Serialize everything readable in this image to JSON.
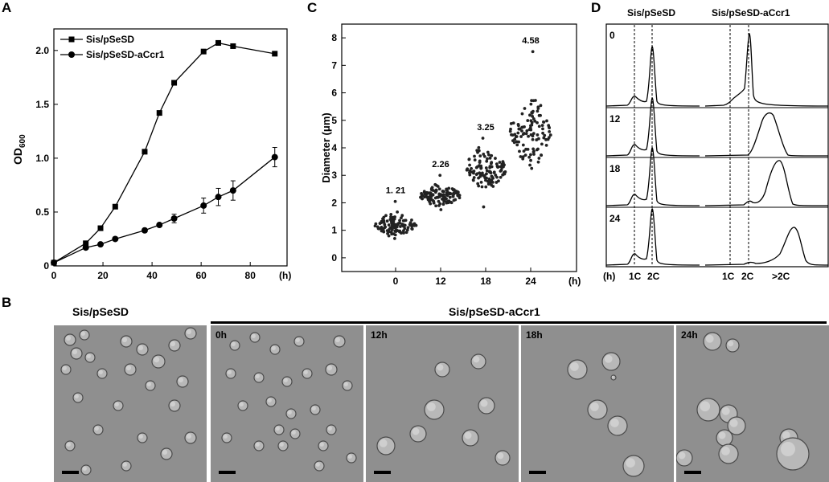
{
  "panels": {
    "A": {
      "letter": "A"
    },
    "B": {
      "letter": "B",
      "left_title": "Sis/pSeSD",
      "right_title": "Sis/pSeSD-aCcr1",
      "micrographs": [
        "",
        "0h",
        "12h",
        "18h",
        "24h"
      ]
    },
    "C": {
      "letter": "C"
    },
    "D": {
      "letter": "D",
      "left_title": "Sis/pSeSD",
      "right_title": "Sis/pSeSD-aCcr1",
      "row_labels": [
        "0",
        "12",
        "18",
        "24"
      ],
      "bottom_unit": "(h)",
      "left_ticks": [
        "1C",
        "2C"
      ],
      "right_ticks": [
        "1C",
        "2C",
        ">2C"
      ]
    }
  },
  "chart_data": [
    {
      "panel": "A",
      "type": "line",
      "ylabel": "OD600",
      "ylabel_main": "OD",
      "ylabel_sub": "600",
      "xunit": "(h)",
      "xlim": [
        0,
        95
      ],
      "ylim": [
        0,
        2.2
      ],
      "xticks": [
        "0",
        "20",
        "40",
        "60",
        "80"
      ],
      "xtick_values": [
        0,
        20,
        40,
        60,
        80
      ],
      "yticks": [
        "0",
        "0.5",
        "1.0",
        "1.5",
        "2.0"
      ],
      "ytick_values": [
        0,
        0.5,
        1.0,
        1.5,
        2.0
      ],
      "legend": [
        "Sis/pSeSD",
        "Sis/pSeSD-aCcr1"
      ],
      "series": [
        {
          "name": "Sis/pSeSD",
          "marker": "square",
          "x": [
            0,
            13,
            19,
            25,
            37,
            43,
            49,
            61,
            67,
            73,
            90
          ],
          "y": [
            0.03,
            0.21,
            0.35,
            0.55,
            1.06,
            1.42,
            1.7,
            1.99,
            2.07,
            2.04,
            1.97
          ]
        },
        {
          "name": "Sis/pSeSD-aCcr1",
          "marker": "circle",
          "x": [
            0,
            13,
            19,
            25,
            37,
            43,
            49,
            61,
            67,
            73,
            90
          ],
          "y": [
            0.03,
            0.17,
            0.2,
            0.25,
            0.33,
            0.38,
            0.44,
            0.56,
            0.64,
            0.7,
            1.01
          ],
          "error": [
            0,
            0,
            0,
            0,
            0,
            0,
            0.04,
            0.07,
            0.08,
            0.09,
            0.09
          ]
        }
      ]
    },
    {
      "panel": "C",
      "type": "scatter",
      "ylabel": "Diameter (μm)",
      "xunit": "(h)",
      "categories": [
        "0",
        "12",
        "18",
        "24"
      ],
      "ylim": [
        -0.5,
        8.5
      ],
      "yticks": [
        "0",
        "1",
        "2",
        "3",
        "4",
        "5",
        "6",
        "7",
        "8"
      ],
      "ytick_values": [
        0,
        1,
        2,
        3,
        4,
        5,
        6,
        7,
        8
      ],
      "mean_labels": [
        "1. 21",
        "2.26",
        "3.25",
        "4.58"
      ],
      "groups": [
        {
          "category": "0",
          "mean": 1.21,
          "min": 0.7,
          "max": 2.05
        },
        {
          "category": "12",
          "mean": 2.26,
          "min": 1.75,
          "max": 3.0
        },
        {
          "category": "18",
          "mean": 3.25,
          "min": 1.85,
          "max": 4.35
        },
        {
          "category": "24",
          "mean": 4.58,
          "min": 3.25,
          "max": 7.5
        }
      ]
    }
  ]
}
